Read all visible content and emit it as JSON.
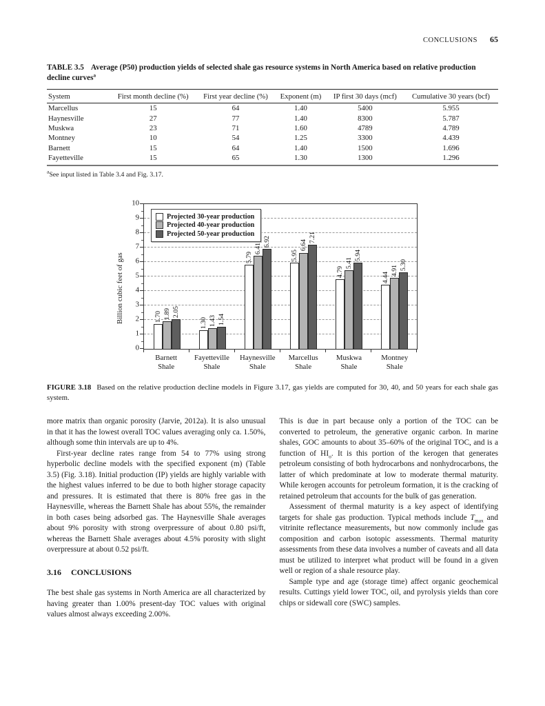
{
  "page": {
    "header": {
      "running_head": "CONCLUSIONS",
      "page_number": "65"
    }
  },
  "table": {
    "label": "TABLE 3.5",
    "title": "Average (P50) production yields of selected shale gas resource systems in North America based on relative production decline curves",
    "title_superscript": "a",
    "columns": [
      "System",
      "First month decline (%)",
      "First year decline (%)",
      "Exponent (m)",
      "IP first 30 days (mcf)",
      "Cumulative 30 years (bcf)"
    ],
    "rows": [
      [
        "Marcellus",
        "15",
        "64",
        "1.40",
        "5400",
        "5.955"
      ],
      [
        "Haynesville",
        "27",
        "77",
        "1.40",
        "8300",
        "5.787"
      ],
      [
        "Muskwa",
        "23",
        "71",
        "1.60",
        "4789",
        "4.789"
      ],
      [
        "Montney",
        "10",
        "54",
        "1.25",
        "3300",
        "4.439"
      ],
      [
        "Barnett",
        "15",
        "64",
        "1.40",
        "1500",
        "1.696"
      ],
      [
        "Fayetteville",
        "15",
        "65",
        "1.30",
        "1300",
        "1.296"
      ]
    ],
    "footnote_superscript": "a",
    "footnote": "See input listed in Table 3.4 and Fig. 3.17."
  },
  "chart_data": {
    "type": "bar",
    "categories": [
      [
        "Barnett",
        "Shale"
      ],
      [
        "Fayetteville",
        "Shale"
      ],
      [
        "Haynesville",
        "Shale"
      ],
      [
        "Marcellus",
        "Shale"
      ],
      [
        "Muskwa",
        "Shale"
      ],
      [
        "Montney",
        "Shale"
      ]
    ],
    "series": [
      {
        "name": "Projected 30-year production",
        "color": "#ffffff",
        "values": [
          1.7,
          1.3,
          5.79,
          5.95,
          4.79,
          4.44
        ]
      },
      {
        "name": "Projected 40-year production",
        "color": "#b3b3b3",
        "values": [
          1.89,
          1.43,
          6.41,
          6.64,
          5.41,
          4.91
        ]
      },
      {
        "name": "Projected 50-year production",
        "color": "#5e5e5e",
        "values": [
          2.05,
          1.54,
          6.92,
          7.21,
          5.94,
          5.3
        ]
      }
    ],
    "title": "",
    "xlabel": "",
    "ylabel": "Billion cubic feet of gas",
    "ylim": [
      0,
      10
    ],
    "ytick_step": 1,
    "grid": "horizontal-dashed",
    "legend_position": "top-left",
    "bar_border_color": "#2b2b2b",
    "value_label_decimals": 2
  },
  "figure": {
    "label": "FIGURE 3.18",
    "caption": "Based on the relative production decline models in Figure 3.17, gas yields are computed for 30, 40, and 50 years for each shale gas system."
  },
  "body": {
    "left": [
      {
        "type": "p",
        "indent": false,
        "segments": [
          {
            "t": "more matrix than organic porosity (Jarvie, 2012a). It is also unusual in that it has the lowest overall TOC values averaging only ca. 1.50%, although some thin intervals are up to 4%."
          }
        ]
      },
      {
        "type": "p",
        "indent": true,
        "segments": [
          {
            "t": "First-year decline rates range from 54 to 77% using strong hyperbolic decline models with the specified exponent (m) (Table 3.5) (Fig. 3.18). Initial production (IP) yields are highly variable with the highest values inferred to be due to both higher storage capacity and pressures. It is estimated that there is 80% free gas in the Haynesville, whereas the Barnett Shale has about 55%, the remainder in both cases being adsorbed gas. The Haynesville Shale averages about 9% porosity with strong overpressure of about 0.80 psi/ft, whereas the Barnett Shale averages about 4.5% porosity with slight overpressure at about 0.52 psi/ft."
          }
        ]
      },
      {
        "type": "heading",
        "number": "3.16",
        "text": "CONCLUSIONS"
      },
      {
        "type": "p",
        "indent": false,
        "segments": [
          {
            "t": "The best shale gas systems in North America are all characterized by having greater than 1.00% present-day TOC values with original values almost always exceeding 2.00%."
          }
        ]
      }
    ],
    "right": [
      {
        "type": "p",
        "indent": false,
        "segments": [
          {
            "t": "This is due in part because only a portion of the TOC can be converted to petroleum, the generative organic carbon. In marine shales, GOC amounts to about 35–60% of the original TOC, and is a function of HI"
          },
          {
            "t": "o",
            "style": "sub"
          },
          {
            "t": ". It is this portion of the kerogen that generates petroleum consisting of both hydrocarbons and nonhydrocarbons, the latter of which predominate at low to moderate thermal maturity. While kerogen accounts for petroleum formation, it is the cracking of retained petroleum that accounts for the bulk of gas generation."
          }
        ]
      },
      {
        "type": "p",
        "indent": true,
        "segments": [
          {
            "t": "Assessment of thermal maturity is a key aspect of identifying targets for shale gas production. Typical methods include "
          },
          {
            "t": "T",
            "style": "italic"
          },
          {
            "t": "max",
            "style": "sub"
          },
          {
            "t": " and vitrinite reflectance measurements, but now commonly include gas composition and carbon isotopic assessments. Thermal maturity assessments from these data involves a number of caveats and all data must be utilized to interpret what product will be found in a given well or region of a shale resource play."
          }
        ]
      },
      {
        "type": "p",
        "indent": true,
        "segments": [
          {
            "t": "Sample type and age (storage time) affect organic geochemical results. Cuttings yield lower TOC, oil, and pyrolysis yields than core chips or sidewall core (SWC) samples."
          }
        ]
      }
    ]
  }
}
